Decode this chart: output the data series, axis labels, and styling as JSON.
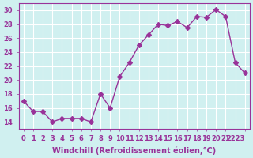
{
  "x": [
    0,
    1,
    2,
    3,
    4,
    5,
    6,
    7,
    8,
    9,
    10,
    11,
    12,
    13,
    14,
    15,
    16,
    17,
    18,
    19,
    20,
    21,
    22,
    23
  ],
  "y": [
    17,
    15.5,
    15.5,
    14,
    14.5,
    14.5,
    14.5,
    14,
    18,
    16,
    20.5,
    22.5,
    25,
    26.5,
    28,
    27.8,
    28.4,
    27.5,
    29.1,
    29.0,
    30.1,
    29.1,
    22.5,
    21
  ],
  "line_color": "#993399",
  "marker": "D",
  "markersize": 3,
  "linewidth": 1,
  "xlabel": "Windchill (Refroidissement éolien,°C)",
  "xlim": [
    -0.5,
    23.5
  ],
  "ylim": [
    13,
    31
  ],
  "yticks": [
    14,
    16,
    18,
    20,
    22,
    24,
    26,
    28,
    30
  ],
  "xtick_labels": [
    "0",
    "1",
    "2",
    "3",
    "4",
    "5",
    "6",
    "7",
    "8",
    "9",
    "10",
    "11",
    "12",
    "13",
    "14",
    "15",
    "16",
    "17",
    "18",
    "19",
    "20",
    "21",
    "2223",
    ""
  ],
  "background_color": "#d0f0f0",
  "grid_color": "#ffffff",
  "tick_fontsize": 6,
  "xlabel_fontsize": 7
}
